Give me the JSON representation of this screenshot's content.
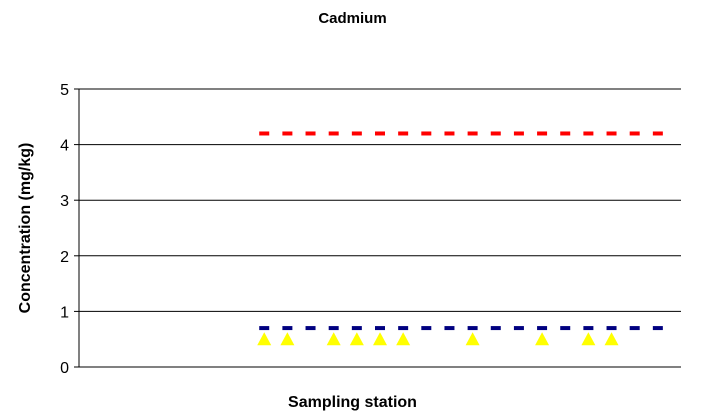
{
  "chart_data": {
    "type": "scatter",
    "title": "Cadmium",
    "xlabel": "Sampling station",
    "ylabel": "Concentration (mg/kg)",
    "xlim": [
      0,
      26
    ],
    "ylim": [
      0,
      5
    ],
    "y_ticks": [
      "0",
      "1",
      "2",
      "3",
      "4",
      "5"
    ],
    "grid": true,
    "series": [
      {
        "marker": "dash",
        "color": "#ff0000",
        "x": [
          8,
          9,
          10,
          11,
          12,
          13,
          14,
          15,
          16,
          17,
          18,
          19,
          20,
          21,
          22,
          23,
          24,
          25
        ],
        "values": [
          4.2,
          4.2,
          4.2,
          4.2,
          4.2,
          4.2,
          4.2,
          4.2,
          4.2,
          4.2,
          4.2,
          4.2,
          4.2,
          4.2,
          4.2,
          4.2,
          4.2,
          4.2
        ]
      },
      {
        "marker": "dash",
        "color": "#000080",
        "x": [
          8,
          9,
          10,
          11,
          12,
          13,
          14,
          15,
          16,
          17,
          18,
          19,
          20,
          21,
          22,
          23,
          24,
          25
        ],
        "values": [
          0.7,
          0.7,
          0.7,
          0.7,
          0.7,
          0.7,
          0.7,
          0.7,
          0.7,
          0.7,
          0.7,
          0.7,
          0.7,
          0.7,
          0.7,
          0.7,
          0.7,
          0.7
        ]
      },
      {
        "marker": "triangle",
        "color": "#ffff00",
        "x": [
          8,
          9,
          11,
          12,
          13,
          14,
          17,
          20,
          22,
          23
        ],
        "values": [
          0.5,
          0.5,
          0.5,
          0.5,
          0.5,
          0.5,
          0.5,
          0.5,
          0.5,
          0.5
        ]
      }
    ]
  }
}
